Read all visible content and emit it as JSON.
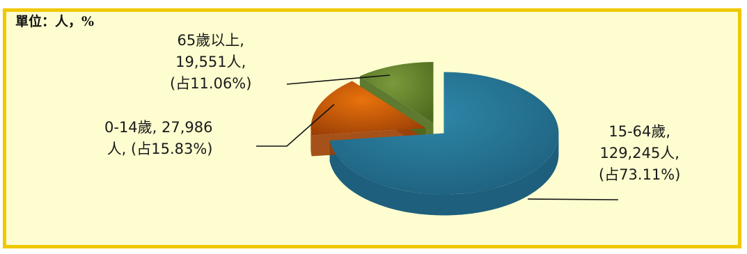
{
  "unit_text": "單位：人，%",
  "colors": {
    "frame_background": "#fdfdd0",
    "frame_border": "#f0c800",
    "series": [
      "#2e86a8",
      "#e8720c",
      "#7a9a3c"
    ],
    "series_side": [
      "#1d5f7c",
      "#9b3f06",
      "#4d6a1e"
    ]
  },
  "chart_data": {
    "type": "pie",
    "title": "",
    "unit": "單位：人，%",
    "categories": [
      "15-64歲",
      "0-14歲",
      "65歲以上"
    ],
    "values": [
      129245,
      27986,
      19551
    ],
    "percentages": [
      73.11,
      15.83,
      11.06
    ],
    "labels": [
      {
        "line1": "15-64歲,",
        "line2": "129,245人,",
        "line3": "(占73.11%)"
      },
      {
        "line1": "0-14歲, 27,986",
        "line2": "人, (占15.83%)"
      },
      {
        "line1": "65歲以上,",
        "line2": "19,551人,",
        "line3": "(占11.06%)"
      }
    ],
    "legend": "none",
    "style": "3d-exploded"
  }
}
